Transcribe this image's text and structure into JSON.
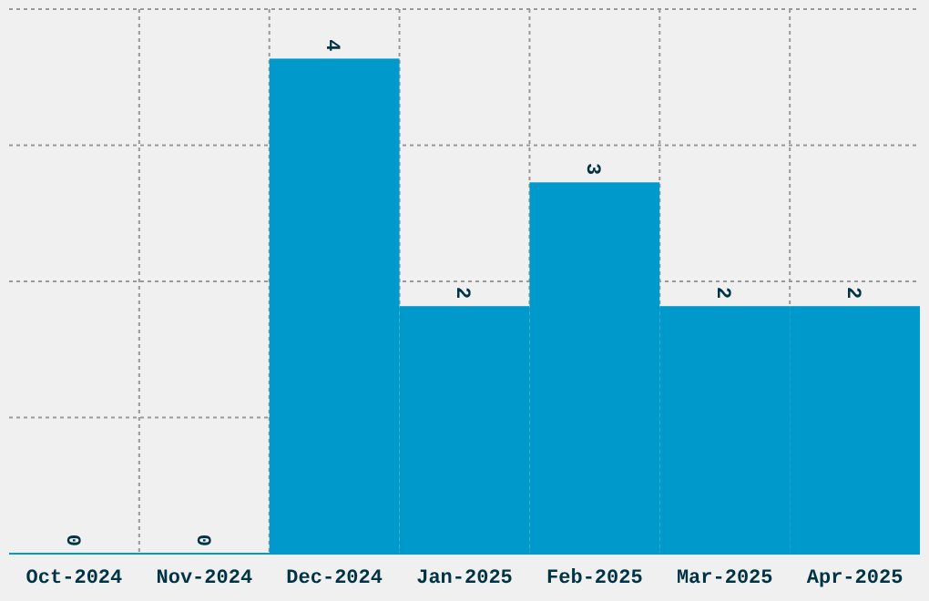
{
  "chart_data": {
    "type": "bar",
    "categories": [
      "Oct-2024",
      "Nov-2024",
      "Dec-2024",
      "Jan-2025",
      "Feb-2025",
      "Mar-2025",
      "Apr-2025"
    ],
    "values": [
      0,
      0,
      4,
      2,
      3,
      2,
      2
    ],
    "color": "#0099cc",
    "ylim": [
      0,
      4.4
    ],
    "yticks": [
      {
        "value": 1.1,
        "label": null
      },
      {
        "value": 2.2,
        "label": null
      },
      {
        "value": 3.3,
        "label": null
      },
      {
        "value": 4.4,
        "label": null
      }
    ],
    "grid": true,
    "tick_labels": "x",
    "data_labels": true
  }
}
